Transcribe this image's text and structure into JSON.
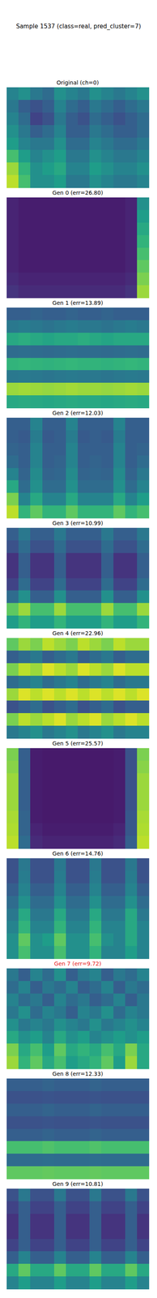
{
  "title": "Sample 1537 (class=real, pred_cluster=7)",
  "chart_data": [
    {
      "type": "heatmap",
      "title": "Original (ch=0)",
      "cells": [
        [
          0.45,
          0.5,
          0.4,
          0.35,
          0.5,
          0.45,
          0.4,
          0.5,
          0.45,
          0.4,
          0.45,
          0.5
        ],
        [
          0.4,
          0.3,
          0.25,
          0.3,
          0.45,
          0.35,
          0.3,
          0.4,
          0.35,
          0.3,
          0.35,
          0.4
        ],
        [
          0.45,
          0.35,
          0.2,
          0.25,
          0.4,
          0.3,
          0.25,
          0.35,
          0.3,
          0.25,
          0.3,
          0.35
        ],
        [
          0.5,
          0.4,
          0.3,
          0.35,
          0.45,
          0.3,
          0.3,
          0.4,
          0.35,
          0.3,
          0.3,
          0.35
        ],
        [
          0.55,
          0.45,
          0.4,
          0.4,
          0.5,
          0.35,
          0.35,
          0.45,
          0.4,
          0.35,
          0.35,
          0.4
        ],
        [
          0.7,
          0.55,
          0.45,
          0.5,
          0.55,
          0.4,
          0.4,
          0.5,
          0.45,
          0.4,
          0.4,
          0.45
        ],
        [
          0.85,
          0.65,
          0.5,
          0.55,
          0.6,
          0.45,
          0.45,
          0.55,
          0.5,
          0.45,
          0.45,
          0.5
        ],
        [
          0.9,
          0.7,
          0.5,
          0.5,
          0.55,
          0.4,
          0.4,
          0.5,
          0.45,
          0.4,
          0.4,
          0.45
        ]
      ]
    },
    {
      "type": "heatmap",
      "title": "Gen 0 (err=26.80)",
      "cells": [
        [
          0.1,
          0.08,
          0.08,
          0.08,
          0.08,
          0.08,
          0.08,
          0.08,
          0.08,
          0.08,
          0.1,
          0.5
        ],
        [
          0.1,
          0.08,
          0.08,
          0.08,
          0.08,
          0.08,
          0.08,
          0.08,
          0.08,
          0.08,
          0.1,
          0.55
        ],
        [
          0.1,
          0.08,
          0.08,
          0.08,
          0.08,
          0.08,
          0.08,
          0.08,
          0.08,
          0.08,
          0.1,
          0.6
        ],
        [
          0.1,
          0.08,
          0.08,
          0.08,
          0.08,
          0.08,
          0.08,
          0.08,
          0.08,
          0.08,
          0.1,
          0.65
        ],
        [
          0.1,
          0.08,
          0.08,
          0.08,
          0.08,
          0.08,
          0.08,
          0.08,
          0.08,
          0.08,
          0.1,
          0.7
        ],
        [
          0.1,
          0.08,
          0.08,
          0.08,
          0.08,
          0.08,
          0.08,
          0.08,
          0.08,
          0.08,
          0.1,
          0.75
        ],
        [
          0.12,
          0.1,
          0.1,
          0.1,
          0.1,
          0.1,
          0.1,
          0.1,
          0.1,
          0.1,
          0.12,
          0.8
        ],
        [
          0.15,
          0.12,
          0.12,
          0.12,
          0.12,
          0.12,
          0.12,
          0.12,
          0.12,
          0.12,
          0.15,
          0.85
        ]
      ]
    },
    {
      "type": "heatmap",
      "title": "Gen 1 (err=13.89)",
      "cells": [
        [
          0.3,
          0.3,
          0.32,
          0.3,
          0.3,
          0.32,
          0.3,
          0.3,
          0.32,
          0.3,
          0.3,
          0.3
        ],
        [
          0.4,
          0.42,
          0.4,
          0.38,
          0.4,
          0.42,
          0.4,
          0.4,
          0.38,
          0.4,
          0.42,
          0.4
        ],
        [
          0.6,
          0.62,
          0.6,
          0.58,
          0.6,
          0.6,
          0.62,
          0.6,
          0.58,
          0.6,
          0.6,
          0.6
        ],
        [
          0.35,
          0.36,
          0.35,
          0.34,
          0.35,
          0.36,
          0.35,
          0.35,
          0.34,
          0.35,
          0.36,
          0.35
        ],
        [
          0.65,
          0.66,
          0.65,
          0.64,
          0.65,
          0.66,
          0.65,
          0.65,
          0.64,
          0.65,
          0.66,
          0.65
        ],
        [
          0.4,
          0.41,
          0.4,
          0.39,
          0.4,
          0.41,
          0.4,
          0.4,
          0.39,
          0.4,
          0.41,
          0.4
        ],
        [
          0.85,
          0.86,
          0.85,
          0.84,
          0.85,
          0.86,
          0.85,
          0.85,
          0.84,
          0.85,
          0.86,
          0.85
        ],
        [
          0.6,
          0.61,
          0.6,
          0.59,
          0.6,
          0.61,
          0.6,
          0.6,
          0.59,
          0.6,
          0.61,
          0.6
        ]
      ]
    },
    {
      "type": "heatmap",
      "title": "Gen 2 (err=12.03)",
      "cells": [
        [
          0.3,
          0.3,
          0.45,
          0.3,
          0.3,
          0.45,
          0.3,
          0.3,
          0.3,
          0.45,
          0.3,
          0.3
        ],
        [
          0.3,
          0.28,
          0.42,
          0.28,
          0.3,
          0.42,
          0.28,
          0.3,
          0.28,
          0.42,
          0.3,
          0.3
        ],
        [
          0.32,
          0.3,
          0.45,
          0.3,
          0.3,
          0.45,
          0.3,
          0.3,
          0.3,
          0.45,
          0.3,
          0.32
        ],
        [
          0.35,
          0.3,
          0.45,
          0.3,
          0.32,
          0.45,
          0.3,
          0.32,
          0.3,
          0.45,
          0.3,
          0.35
        ],
        [
          0.45,
          0.32,
          0.48,
          0.32,
          0.33,
          0.48,
          0.32,
          0.33,
          0.32,
          0.48,
          0.32,
          0.4
        ],
        [
          0.6,
          0.35,
          0.5,
          0.35,
          0.35,
          0.5,
          0.35,
          0.35,
          0.35,
          0.5,
          0.35,
          0.45
        ],
        [
          0.8,
          0.45,
          0.6,
          0.45,
          0.45,
          0.6,
          0.45,
          0.45,
          0.45,
          0.6,
          0.45,
          0.55
        ],
        [
          0.9,
          0.65,
          0.75,
          0.65,
          0.65,
          0.75,
          0.65,
          0.65,
          0.65,
          0.75,
          0.65,
          0.7
        ]
      ]
    },
    {
      "type": "heatmap",
      "title": "Gen 3 (err=10.99)",
      "cells": [
        [
          0.3,
          0.4,
          0.3,
          0.3,
          0.4,
          0.3,
          0.3,
          0.3,
          0.4,
          0.3,
          0.3,
          0.4
        ],
        [
          0.25,
          0.35,
          0.25,
          0.25,
          0.35,
          0.25,
          0.25,
          0.25,
          0.35,
          0.25,
          0.25,
          0.35
        ],
        [
          0.15,
          0.3,
          0.15,
          0.15,
          0.3,
          0.15,
          0.15,
          0.15,
          0.3,
          0.15,
          0.15,
          0.3
        ],
        [
          0.15,
          0.3,
          0.15,
          0.15,
          0.3,
          0.15,
          0.15,
          0.15,
          0.3,
          0.15,
          0.15,
          0.3
        ],
        [
          0.2,
          0.35,
          0.2,
          0.2,
          0.35,
          0.2,
          0.2,
          0.2,
          0.35,
          0.2,
          0.2,
          0.35
        ],
        [
          0.35,
          0.5,
          0.3,
          0.3,
          0.5,
          0.3,
          0.3,
          0.3,
          0.5,
          0.3,
          0.3,
          0.5
        ],
        [
          0.75,
          0.85,
          0.7,
          0.7,
          0.85,
          0.7,
          0.7,
          0.7,
          0.85,
          0.7,
          0.7,
          0.85
        ],
        [
          0.55,
          0.65,
          0.55,
          0.55,
          0.65,
          0.55,
          0.55,
          0.55,
          0.65,
          0.55,
          0.55,
          0.65
        ]
      ]
    },
    {
      "type": "heatmap",
      "title": "Gen 4 (err=22.96)",
      "cells": [
        [
          0.75,
          0.85,
          0.8,
          0.9,
          0.85,
          0.8,
          0.9,
          0.85,
          0.8,
          0.9,
          0.85,
          0.85
        ],
        [
          0.3,
          0.35,
          0.4,
          0.3,
          0.35,
          0.4,
          0.3,
          0.35,
          0.4,
          0.3,
          0.35,
          0.35
        ],
        [
          0.8,
          0.9,
          0.85,
          0.95,
          0.9,
          0.85,
          0.95,
          0.9,
          0.85,
          0.95,
          0.9,
          0.9
        ],
        [
          0.35,
          0.4,
          0.45,
          0.35,
          0.4,
          0.45,
          0.35,
          0.4,
          0.45,
          0.35,
          0.4,
          0.4
        ],
        [
          0.85,
          0.95,
          0.9,
          0.95,
          0.9,
          0.95,
          0.9,
          0.95,
          0.9,
          0.95,
          0.9,
          0.95
        ],
        [
          0.25,
          0.3,
          0.35,
          0.25,
          0.3,
          0.35,
          0.25,
          0.3,
          0.35,
          0.25,
          0.3,
          0.3
        ],
        [
          0.8,
          0.9,
          0.85,
          0.9,
          0.95,
          0.85,
          0.9,
          0.95,
          0.85,
          0.9,
          0.95,
          0.9
        ],
        [
          0.4,
          0.45,
          0.5,
          0.4,
          0.45,
          0.5,
          0.4,
          0.45,
          0.5,
          0.4,
          0.45,
          0.45
        ]
      ]
    },
    {
      "type": "heatmap",
      "title": "Gen 5 (err=25.57)",
      "cells": [
        [
          0.8,
          0.3,
          0.08,
          0.07,
          0.07,
          0.07,
          0.07,
          0.07,
          0.07,
          0.08,
          0.25,
          0.8
        ],
        [
          0.82,
          0.3,
          0.08,
          0.07,
          0.07,
          0.07,
          0.07,
          0.07,
          0.07,
          0.08,
          0.25,
          0.82
        ],
        [
          0.85,
          0.3,
          0.08,
          0.07,
          0.07,
          0.07,
          0.07,
          0.07,
          0.07,
          0.08,
          0.25,
          0.85
        ],
        [
          0.85,
          0.3,
          0.08,
          0.07,
          0.07,
          0.07,
          0.07,
          0.07,
          0.07,
          0.08,
          0.25,
          0.85
        ],
        [
          0.85,
          0.3,
          0.08,
          0.07,
          0.07,
          0.07,
          0.07,
          0.07,
          0.07,
          0.08,
          0.25,
          0.85
        ],
        [
          0.87,
          0.32,
          0.08,
          0.07,
          0.07,
          0.07,
          0.07,
          0.07,
          0.07,
          0.08,
          0.27,
          0.87
        ],
        [
          0.88,
          0.32,
          0.1,
          0.08,
          0.08,
          0.08,
          0.08,
          0.08,
          0.08,
          0.1,
          0.27,
          0.88
        ],
        [
          0.9,
          0.35,
          0.12,
          0.1,
          0.1,
          0.1,
          0.1,
          0.1,
          0.1,
          0.12,
          0.3,
          0.9
        ]
      ]
    },
    {
      "type": "heatmap",
      "title": "Gen 6 (err=14.76)",
      "cells": [
        [
          0.25,
          0.4,
          0.25,
          0.25,
          0.4,
          0.25,
          0.25,
          0.4,
          0.25,
          0.25,
          0.4,
          0.25
        ],
        [
          0.25,
          0.42,
          0.25,
          0.25,
          0.42,
          0.25,
          0.25,
          0.42,
          0.25,
          0.25,
          0.42,
          0.25
        ],
        [
          0.3,
          0.45,
          0.3,
          0.3,
          0.45,
          0.3,
          0.3,
          0.45,
          0.3,
          0.3,
          0.45,
          0.3
        ],
        [
          0.35,
          0.5,
          0.35,
          0.35,
          0.5,
          0.35,
          0.35,
          0.5,
          0.35,
          0.35,
          0.5,
          0.35
        ],
        [
          0.4,
          0.6,
          0.4,
          0.4,
          0.6,
          0.4,
          0.4,
          0.6,
          0.4,
          0.4,
          0.6,
          0.4
        ],
        [
          0.45,
          0.65,
          0.45,
          0.45,
          0.65,
          0.45,
          0.45,
          0.65,
          0.45,
          0.45,
          0.6,
          0.45
        ],
        [
          0.5,
          0.75,
          0.5,
          0.55,
          0.75,
          0.5,
          0.5,
          0.7,
          0.5,
          0.45,
          0.6,
          0.45
        ],
        [
          0.5,
          0.7,
          0.5,
          0.5,
          0.7,
          0.5,
          0.5,
          0.65,
          0.45,
          0.45,
          0.55,
          0.45
        ]
      ]
    },
    {
      "type": "heatmap",
      "title": "Gen 7 (err=9.72)",
      "color": "#e8201c",
      "cells": [
        [
          0.4,
          0.3,
          0.45,
          0.35,
          0.5,
          0.3,
          0.4,
          0.45,
          0.3,
          0.4,
          0.35,
          0.45
        ],
        [
          0.35,
          0.45,
          0.3,
          0.4,
          0.35,
          0.45,
          0.3,
          0.35,
          0.45,
          0.3,
          0.4,
          0.35
        ],
        [
          0.45,
          0.35,
          0.4,
          0.3,
          0.45,
          0.35,
          0.4,
          0.3,
          0.35,
          0.45,
          0.3,
          0.4
        ],
        [
          0.4,
          0.5,
          0.35,
          0.45,
          0.4,
          0.3,
          0.45,
          0.4,
          0.5,
          0.35,
          0.45,
          0.4
        ],
        [
          0.5,
          0.4,
          0.45,
          0.4,
          0.5,
          0.45,
          0.4,
          0.5,
          0.4,
          0.45,
          0.5,
          0.45
        ],
        [
          0.6,
          0.5,
          0.55,
          0.45,
          0.6,
          0.5,
          0.55,
          0.45,
          0.5,
          0.55,
          0.5,
          0.55
        ],
        [
          0.8,
          0.6,
          0.7,
          0.55,
          0.75,
          0.6,
          0.65,
          0.6,
          0.7,
          0.6,
          0.8,
          0.6
        ],
        [
          0.85,
          0.65,
          0.75,
          0.6,
          0.7,
          0.55,
          0.6,
          0.65,
          0.75,
          0.55,
          0.85,
          0.6
        ]
      ]
    },
    {
      "type": "heatmap",
      "title": "Gen 8 (err=12.33)",
      "cells": [
        [
          0.3,
          0.3,
          0.3,
          0.32,
          0.3,
          0.3,
          0.3,
          0.32,
          0.3,
          0.3,
          0.3,
          0.3
        ],
        [
          0.25,
          0.25,
          0.25,
          0.26,
          0.25,
          0.25,
          0.25,
          0.26,
          0.25,
          0.25,
          0.25,
          0.25
        ],
        [
          0.3,
          0.3,
          0.3,
          0.32,
          0.3,
          0.3,
          0.3,
          0.32,
          0.3,
          0.3,
          0.3,
          0.3
        ],
        [
          0.25,
          0.25,
          0.25,
          0.26,
          0.25,
          0.25,
          0.25,
          0.26,
          0.25,
          0.25,
          0.25,
          0.25
        ],
        [
          0.3,
          0.3,
          0.3,
          0.32,
          0.3,
          0.3,
          0.3,
          0.32,
          0.3,
          0.3,
          0.3,
          0.3
        ],
        [
          0.7,
          0.7,
          0.7,
          0.72,
          0.7,
          0.7,
          0.7,
          0.72,
          0.7,
          0.7,
          0.7,
          0.7
        ],
        [
          0.35,
          0.35,
          0.35,
          0.36,
          0.35,
          0.35,
          0.35,
          0.36,
          0.35,
          0.35,
          0.35,
          0.35
        ],
        [
          0.75,
          0.75,
          0.75,
          0.76,
          0.75,
          0.75,
          0.75,
          0.76,
          0.75,
          0.75,
          0.75,
          0.75
        ]
      ]
    },
    {
      "type": "heatmap",
      "title": "Gen 9 (err=10.81)",
      "cells": [
        [
          0.25,
          0.4,
          0.25,
          0.25,
          0.4,
          0.25,
          0.25,
          0.4,
          0.25,
          0.25,
          0.4,
          0.25
        ],
        [
          0.2,
          0.3,
          0.2,
          0.2,
          0.3,
          0.2,
          0.2,
          0.3,
          0.2,
          0.2,
          0.3,
          0.2
        ],
        [
          0.15,
          0.3,
          0.15,
          0.15,
          0.3,
          0.15,
          0.15,
          0.3,
          0.15,
          0.15,
          0.3,
          0.15
        ],
        [
          0.15,
          0.3,
          0.15,
          0.15,
          0.3,
          0.15,
          0.15,
          0.3,
          0.15,
          0.15,
          0.3,
          0.15
        ],
        [
          0.2,
          0.3,
          0.2,
          0.2,
          0.3,
          0.2,
          0.2,
          0.3,
          0.2,
          0.2,
          0.3,
          0.2
        ],
        [
          0.3,
          0.45,
          0.3,
          0.3,
          0.45,
          0.3,
          0.3,
          0.45,
          0.3,
          0.3,
          0.45,
          0.3
        ],
        [
          0.6,
          0.75,
          0.6,
          0.6,
          0.75,
          0.6,
          0.6,
          0.75,
          0.6,
          0.6,
          0.75,
          0.6
        ],
        [
          0.45,
          0.55,
          0.45,
          0.45,
          0.55,
          0.45,
          0.45,
          0.55,
          0.45,
          0.45,
          0.55,
          0.45
        ]
      ]
    }
  ]
}
